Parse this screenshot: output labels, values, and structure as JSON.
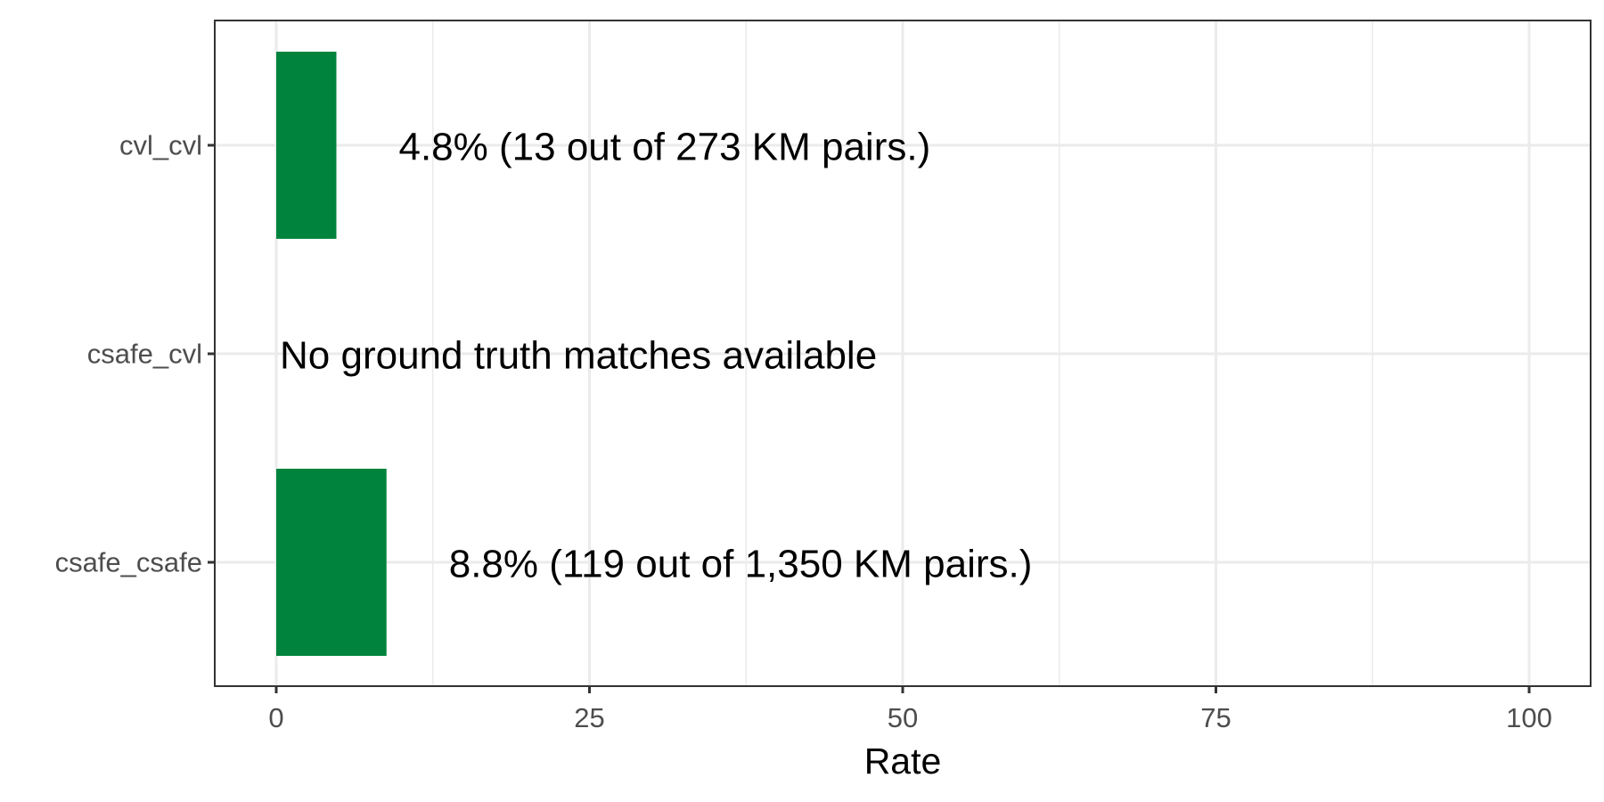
{
  "chart_data": {
    "type": "bar",
    "orientation": "horizontal",
    "categories": [
      "cvl_cvl",
      "csafe_cvl",
      "csafe_csafe"
    ],
    "values": [
      4.8,
      null,
      8.8
    ],
    "labels": [
      "4.8% (13 out of 273 KM pairs.)",
      "No ground truth matches available",
      "8.8% (119 out of 1,350 KM pairs.)"
    ],
    "xlabel": "Rate",
    "ylabel": "",
    "title": "",
    "xlim": [
      0,
      100
    ],
    "xticks": [
      0,
      25,
      50,
      75,
      100
    ],
    "grid": true,
    "legend": "none",
    "bar_color": "#00843D"
  }
}
